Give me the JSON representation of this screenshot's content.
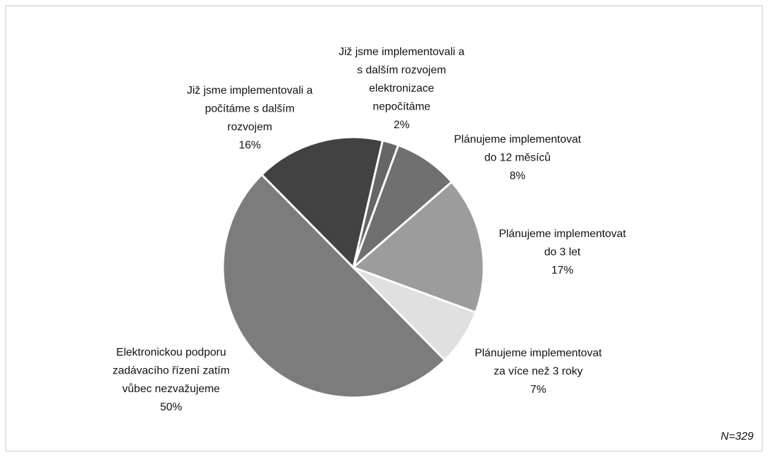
{
  "chart_data": {
    "type": "pie",
    "categories": [
      "Již jsme implementovali a\ns dalším rozvojem\nelektronizace\nnepočítáme",
      "Plánujeme implementovat\ndo 12 měsíců",
      "Plánujeme implementovat\ndo 3 let",
      "Plánujeme implementovat\nza více než 3 roky",
      "Elektronickou podporu\nzadávacího řízení zatím\nvůbec nezvažujeme",
      "Již jsme implementovali a\npočítáme s dalším\nrozvojem"
    ],
    "values": [
      2,
      8,
      17,
      7,
      50,
      16
    ],
    "value_labels": [
      "2%",
      "8%",
      "17%",
      "7%",
      "50%",
      "16%"
    ],
    "colors": [
      "#666666",
      "#707070",
      "#9c9c9c",
      "#e0e0e0",
      "#7c7c7c",
      "#424242"
    ],
    "annotation": "N=329"
  }
}
